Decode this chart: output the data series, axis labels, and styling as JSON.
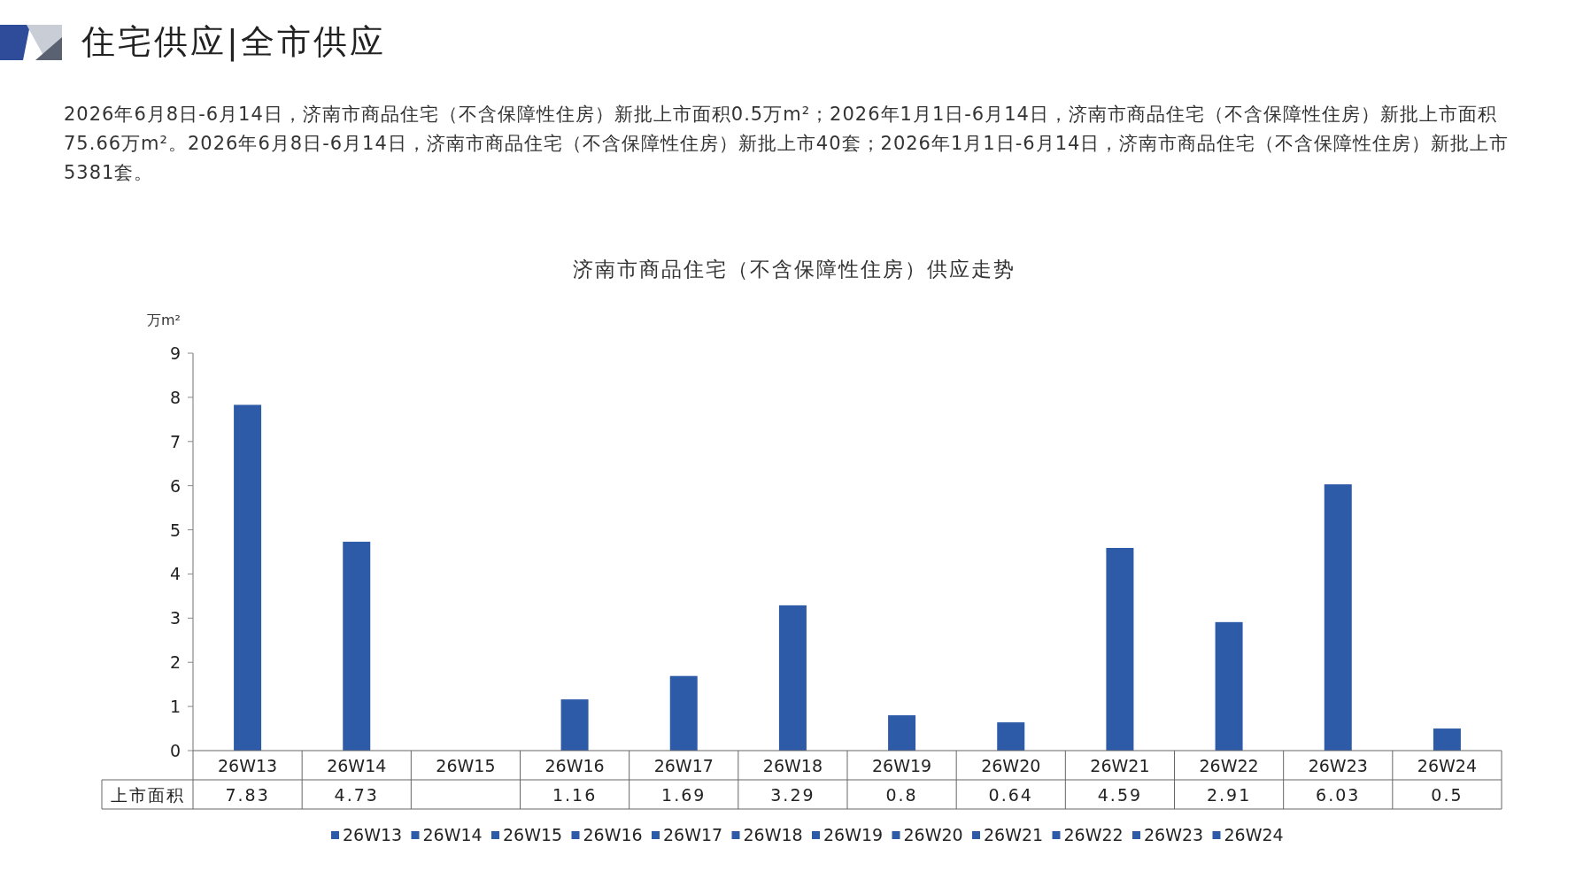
{
  "chart_data": {
    "type": "bar",
    "title": "济南市商品住宅（不含保障性住房）供应走势",
    "ylabel": "万m²",
    "annotations": [
      "住宅供应|全市供应",
      "2026年6月8日-6月14日，济南市商品住宅（不含保障性住房）新批上市面积0.5万m²；2026年1月1日-6月14日，济南市商品住宅（不含保障性住房）新批上市面积75.66万m²。2026年6月8日-6月14日，济南市商品住宅（不含保障性住房）新批上市40套；2026年1月1日-6月14日，济南市商品住宅（不含保障性住房）新批上市5381套。"
    ],
    "categories": [
      "26W13",
      "26W14",
      "26W15",
      "26W16",
      "26W17",
      "26W18",
      "26W19",
      "26W20",
      "26W21",
      "26W22",
      "26W23",
      "26W24"
    ],
    "series": [
      {
        "name": "上市面积",
        "color": "#2e5ba8",
        "values": [
          7.83,
          4.73,
          null,
          1.16,
          1.69,
          3.29,
          0.8,
          0.64,
          4.59,
          2.91,
          6.03,
          0.5
        ]
      }
    ],
    "ylim": [
      0,
      9
    ],
    "yticks": [
      0,
      1,
      2,
      3,
      4,
      5,
      6,
      7,
      8,
      9
    ],
    "grid": false,
    "data_labels": true,
    "legend": "bottom"
  }
}
